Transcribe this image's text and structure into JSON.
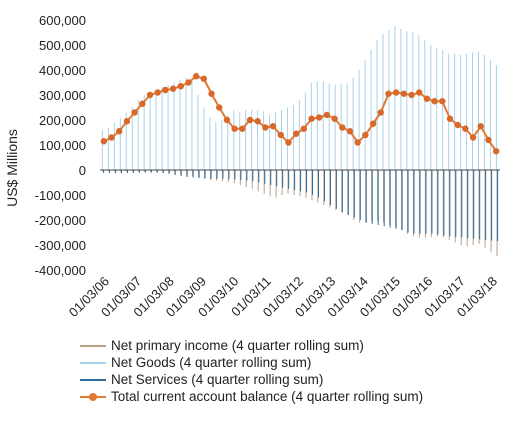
{
  "chart_data": {
    "type": "bar",
    "ylabel": "US$ Millions",
    "ylim": [
      -400000,
      600000
    ],
    "yticks": [
      "600,000",
      "500,000",
      "400,000",
      "300,000",
      "200,000",
      "100,000",
      "0",
      "-100,000",
      "-200,000",
      "-300,000",
      "-400,000"
    ],
    "ytick_values": [
      600000,
      500000,
      400000,
      300000,
      200000,
      100000,
      0,
      -100000,
      -200000,
      -300000,
      -400000
    ],
    "x_tick_labels": [
      "01/03/06",
      "01/03/07",
      "01/03/08",
      "01/03/09",
      "01/03/10",
      "01/03/11",
      "01/03/12",
      "01/03/13",
      "01/03/14",
      "01/03/15",
      "01/03/16",
      "01/03/17",
      "01/03/18"
    ],
    "quarters_start": "01/03/06",
    "colors": {
      "primary_income": "#b8a08a",
      "goods": "#a8d3ea",
      "services": "#2f6e9c",
      "total": "#e07b35",
      "total_marker": "#d9692a",
      "axis": "#444444"
    },
    "series": [
      {
        "name": "Net primary income (4 quarter rolling sum)",
        "kind": "bar",
        "values": [
          -5000,
          -6000,
          -7000,
          -8000,
          -8000,
          -8000,
          -8000,
          -9000,
          -10000,
          -10000,
          -11000,
          -13000,
          -15000,
          -18000,
          -22000,
          -25000,
          -28000,
          -35000,
          -40000,
          -42000,
          -45000,
          -48000,
          -52000,
          -60000,
          -68000,
          -75000,
          -85000,
          -95000,
          -105000,
          -110000,
          -100000,
          -95000,
          -100000,
          -105000,
          -110000,
          -120000,
          -130000,
          -140000,
          -150000,
          -160000,
          -170000,
          -180000,
          -200000,
          -210000,
          -210000,
          -205000,
          -205000,
          -210000,
          -220000,
          -230000,
          -240000,
          -255000,
          -265000,
          -270000,
          -270000,
          -268000,
          -265000,
          -270000,
          -280000,
          -290000,
          -300000,
          -305000,
          -300000,
          -295000,
          -310000,
          -330000,
          -345000
        ]
      },
      {
        "name": "Net Goods (4 quarter rolling sum)",
        "kind": "bar",
        "values": [
          160000,
          170000,
          190000,
          210000,
          230000,
          250000,
          280000,
          300000,
          310000,
          320000,
          330000,
          340000,
          350000,
          360000,
          370000,
          360000,
          300000,
          250000,
          210000,
          190000,
          200000,
          220000,
          240000,
          230000,
          240000,
          240000,
          240000,
          235000,
          220000,
          230000,
          240000,
          250000,
          260000,
          280000,
          310000,
          350000,
          355000,
          355000,
          345000,
          340000,
          345000,
          345000,
          370000,
          400000,
          440000,
          480000,
          520000,
          545000,
          560000,
          575000,
          565000,
          555000,
          550000,
          540000,
          520000,
          500000,
          490000,
          480000,
          465000,
          465000,
          460000,
          465000,
          470000,
          475000,
          460000,
          440000,
          420000
        ]
      },
      {
        "name": "Net Services (4 quarter rolling sum)",
        "kind": "bar",
        "values": [
          -12000,
          -12000,
          -13000,
          -13000,
          -12000,
          -12000,
          -11000,
          -10000,
          -10000,
          -10000,
          -12000,
          -15000,
          -20000,
          -24000,
          -28000,
          -30000,
          -32000,
          -33000,
          -35000,
          -35000,
          -35000,
          -36000,
          -38000,
          -40000,
          -42000,
          -45000,
          -50000,
          -55000,
          -60000,
          -65000,
          -70000,
          -75000,
          -80000,
          -85000,
          -90000,
          -100000,
          -110000,
          -125000,
          -140000,
          -155000,
          -170000,
          -180000,
          -190000,
          -200000,
          -210000,
          -215000,
          -220000,
          -225000,
          -230000,
          -235000,
          -240000,
          -250000,
          -255000,
          -255000,
          -255000,
          -255000,
          -258000,
          -262000,
          -265000,
          -268000,
          -270000,
          -272000,
          -275000,
          -278000,
          -280000,
          -282000,
          -285000
        ]
      },
      {
        "name": "Total current account balance (4 quarter rolling sum)",
        "kind": "line",
        "values": [
          115000,
          130000,
          155000,
          195000,
          230000,
          265000,
          300000,
          310000,
          320000,
          325000,
          335000,
          350000,
          375000,
          365000,
          305000,
          250000,
          200000,
          165000,
          165000,
          200000,
          195000,
          170000,
          175000,
          140000,
          110000,
          145000,
          165000,
          205000,
          210000,
          220000,
          205000,
          170000,
          155000,
          110000,
          140000,
          185000,
          230000,
          305000,
          310000,
          305000,
          300000,
          310000,
          285000,
          275000,
          275000,
          205000,
          180000,
          165000,
          130000,
          175000,
          120000,
          75000
        ]
      }
    ],
    "line_x_index": [
      0,
      1,
      2,
      3,
      4,
      5,
      6,
      7,
      8,
      9,
      10,
      11,
      12,
      13,
      14,
      15,
      16,
      17,
      18,
      19,
      20,
      21,
      22,
      23,
      24,
      25,
      26,
      27,
      28,
      29,
      30,
      31,
      32,
      33,
      34,
      35,
      36,
      37,
      38,
      39,
      40,
      41,
      42,
      43,
      44,
      45,
      46,
      47,
      48,
      49,
      50,
      51
    ]
  },
  "legend": [
    {
      "label": "Net primary income (4 quarter rolling sum)",
      "color": "#b8a08a",
      "marker": false
    },
    {
      "label": "Net Goods (4 quarter rolling sum)",
      "color": "#a8d3ea",
      "marker": false
    },
    {
      "label": "Net Services (4 quarter rolling sum)",
      "color": "#2f6e9c",
      "marker": false
    },
    {
      "label": "Total current account balance (4 quarter rolling sum)",
      "color": "#e07b35",
      "marker": true
    }
  ]
}
